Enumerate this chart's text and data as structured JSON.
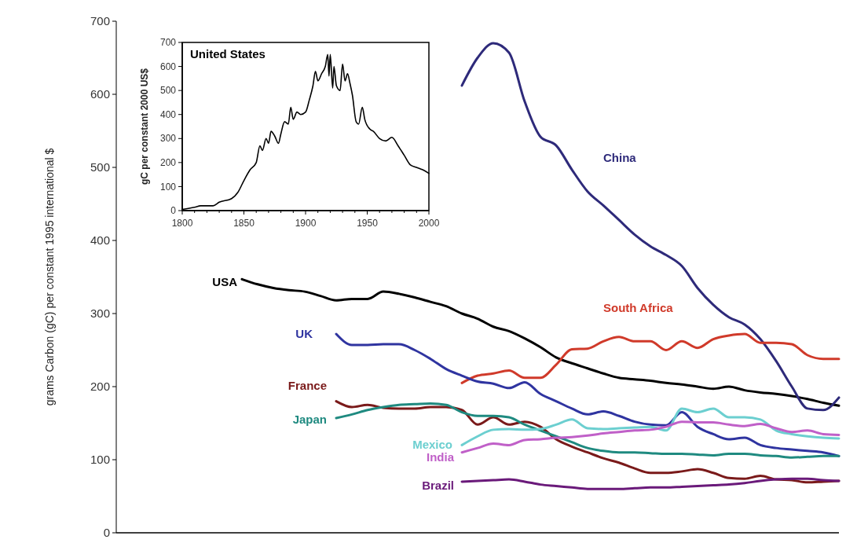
{
  "chart_data": [
    {
      "type": "line",
      "ylabel": "grams Carbon (gC) per constant 1995 international $",
      "categories": [
        null,
        null,
        null,
        null,
        null,
        null,
        null,
        null,
        null,
        null,
        null,
        null,
        null,
        null,
        null,
        null,
        null,
        null,
        null,
        null,
        null,
        null,
        null,
        null,
        null,
        null,
        null,
        null,
        null,
        null,
        null,
        null,
        null,
        null,
        null,
        null,
        null,
        null,
        null,
        null,
        null,
        null,
        null,
        null,
        null,
        null,
        null
      ],
      "ylim": [
        0,
        700
      ],
      "yticks": [
        0,
        100,
        200,
        300,
        400,
        500,
        600,
        700
      ],
      "tick_labels": "y",
      "grid": false,
      "marker": "none",
      "line_style": "solid",
      "series": [
        {
          "name": "USA",
          "color": "#000000",
          "values": [
            null,
            null,
            null,
            null,
            null,
            null,
            null,
            null,
            347,
            340,
            335,
            332,
            330,
            324,
            318,
            320,
            320,
            330,
            327,
            322,
            316,
            310,
            300,
            293,
            282,
            276,
            266,
            254,
            240,
            232,
            225,
            218,
            212,
            210,
            208,
            205,
            203,
            200,
            197,
            200,
            195,
            192,
            190,
            187,
            183,
            178,
            174
          ]
        },
        {
          "name": "China",
          "color": "#2e2a7a",
          "values": [
            null,
            null,
            null,
            null,
            null,
            null,
            null,
            null,
            null,
            null,
            null,
            null,
            null,
            null,
            null,
            null,
            null,
            null,
            null,
            null,
            null,
            null,
            612,
            650,
            670,
            657,
            590,
            542,
            530,
            497,
            467,
            448,
            428,
            408,
            392,
            380,
            365,
            335,
            312,
            295,
            285,
            265,
            235,
            200,
            170,
            168,
            185
          ]
        },
        {
          "name": "South Africa",
          "color": "#d03a2a",
          "values": [
            null,
            null,
            null,
            null,
            null,
            null,
            null,
            null,
            null,
            null,
            null,
            null,
            null,
            null,
            null,
            null,
            null,
            null,
            null,
            null,
            null,
            null,
            205,
            215,
            218,
            222,
            212,
            212,
            230,
            251,
            252,
            262,
            268,
            262,
            262,
            250,
            262,
            253,
            265,
            270,
            272,
            260,
            260,
            258,
            243,
            238,
            238
          ]
        },
        {
          "name": "UK",
          "color": "#2f34a0",
          "values": [
            null,
            null,
            null,
            null,
            null,
            null,
            null,
            null,
            null,
            null,
            null,
            null,
            null,
            null,
            272,
            257,
            257,
            258,
            258,
            250,
            238,
            224,
            215,
            207,
            204,
            198,
            206,
            190,
            180,
            170,
            162,
            166,
            160,
            152,
            148,
            147,
            165,
            145,
            135,
            128,
            130,
            120,
            116,
            114,
            112,
            110,
            105
          ]
        },
        {
          "name": "France",
          "color": "#7a1a1a",
          "values": [
            null,
            null,
            null,
            null,
            null,
            null,
            null,
            null,
            null,
            null,
            null,
            null,
            null,
            null,
            180,
            172,
            175,
            171,
            170,
            170,
            172,
            172,
            168,
            148,
            158,
            148,
            152,
            145,
            128,
            118,
            110,
            102,
            96,
            88,
            82,
            82,
            84,
            87,
            82,
            75,
            74,
            78,
            73,
            72,
            69,
            70,
            71
          ]
        },
        {
          "name": "Japan",
          "color": "#1f8a80",
          "values": [
            null,
            null,
            null,
            null,
            null,
            null,
            null,
            null,
            null,
            null,
            null,
            null,
            null,
            null,
            157,
            162,
            168,
            172,
            175,
            176,
            177,
            175,
            165,
            160,
            160,
            158,
            148,
            140,
            132,
            124,
            116,
            112,
            110,
            110,
            109,
            108,
            108,
            107,
            106,
            108,
            108,
            106,
            105,
            103,
            104,
            105,
            105
          ]
        },
        {
          "name": "Mexico",
          "color": "#6ccfd0",
          "values": [
            null,
            null,
            null,
            null,
            null,
            null,
            null,
            null,
            null,
            null,
            null,
            null,
            null,
            null,
            null,
            null,
            null,
            null,
            null,
            null,
            null,
            null,
            120,
            132,
            141,
            142,
            141,
            142,
            148,
            155,
            143,
            142,
            143,
            144,
            145,
            140,
            170,
            165,
            170,
            158,
            158,
            155,
            140,
            135,
            132,
            130,
            129
          ]
        },
        {
          "name": "India",
          "color": "#c060c8",
          "values": [
            null,
            null,
            null,
            null,
            null,
            null,
            null,
            null,
            null,
            null,
            null,
            null,
            null,
            null,
            null,
            null,
            null,
            null,
            null,
            null,
            null,
            null,
            110,
            116,
            122,
            120,
            127,
            128,
            130,
            131,
            133,
            136,
            138,
            140,
            141,
            145,
            152,
            151,
            151,
            148,
            146,
            149,
            143,
            138,
            140,
            135,
            134
          ]
        },
        {
          "name": "Brazil",
          "color": "#6a1a7a",
          "values": [
            null,
            null,
            null,
            null,
            null,
            null,
            null,
            null,
            null,
            null,
            null,
            null,
            null,
            null,
            null,
            null,
            null,
            null,
            null,
            null,
            null,
            null,
            70,
            71,
            72,
            73,
            70,
            66,
            64,
            62,
            60,
            60,
            60,
            61,
            62,
            62,
            63,
            64,
            65,
            66,
            68,
            71,
            73,
            74,
            74,
            72,
            71
          ]
        }
      ]
    },
    {
      "type": "line",
      "title": "United States",
      "ylabel": "gC per constant 2000 US$",
      "xlim": [
        1800,
        2000
      ],
      "ylim": [
        0,
        700
      ],
      "xticks": [
        1800,
        {
          "value": 1810,
          "label": null
        },
        {
          "value": 1820,
          "label": null
        },
        {
          "value": 1830,
          "label": null
        },
        {
          "value": 1840,
          "label": null
        },
        1850,
        {
          "value": 1860,
          "label": null
        },
        {
          "value": 1870,
          "label": null
        },
        {
          "value": 1880,
          "label": null
        },
        {
          "value": 1890,
          "label": null
        },
        1900,
        {
          "value": 1910,
          "label": null
        },
        {
          "value": 1920,
          "label": null
        },
        {
          "value": 1930,
          "label": null
        },
        {
          "value": 1940,
          "label": null
        },
        1950,
        {
          "value": 1960,
          "label": null
        },
        {
          "value": 1970,
          "label": null
        },
        {
          "value": 1980,
          "label": null
        },
        {
          "value": 1990,
          "label": null
        },
        2000
      ],
      "yticks": [
        0,
        100,
        200,
        300,
        400,
        500,
        600,
        700
      ],
      "grid": false,
      "marker": "none",
      "line_style": "solid",
      "series": [
        {
          "color": "#000000",
          "x": [
            1800,
            1810,
            1815,
            1825,
            1830,
            1840,
            1845,
            1850,
            1855,
            1860,
            1863,
            1865,
            1868,
            1870,
            1872,
            1875,
            1878,
            1880,
            1883,
            1886,
            1888,
            1890,
            1893,
            1896,
            1900,
            1903,
            1906,
            1908,
            1910,
            1913,
            1916,
            1918,
            1919,
            1920,
            1922,
            1923,
            1925,
            1928,
            1930,
            1932,
            1934,
            1936,
            1938,
            1941,
            1943,
            1946,
            1948,
            1952,
            1955,
            1960,
            1965,
            1970,
            1975,
            1980,
            1985,
            1990,
            1995,
            2000
          ],
          "values": [
            5,
            14,
            20,
            20,
            35,
            50,
            75,
            125,
            170,
            200,
            270,
            250,
            300,
            280,
            330,
            310,
            280,
            320,
            370,
            360,
            430,
            380,
            410,
            400,
            410,
            460,
            520,
            580,
            540,
            570,
            600,
            650,
            560,
            650,
            510,
            600,
            520,
            500,
            610,
            540,
            570,
            530,
            480,
            370,
            360,
            430,
            380,
            340,
            330,
            300,
            290,
            305,
            270,
            230,
            190,
            180,
            170,
            155
          ]
        }
      ]
    }
  ]
}
